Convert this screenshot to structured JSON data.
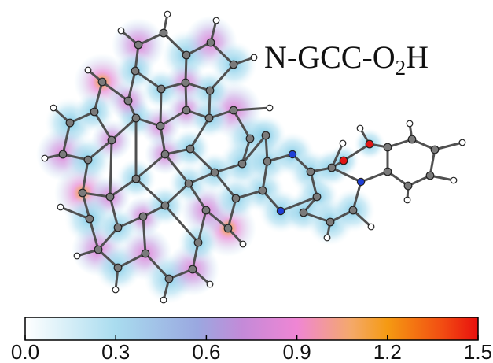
{
  "figure": {
    "label_main": "N-GCC-O",
    "label_sub": "2",
    "label_tail": "H"
  },
  "colorbar": {
    "ticks": [
      "0.0",
      "0.3",
      "0.6",
      "0.9",
      "1.2",
      "1.5"
    ],
    "tick_values": [
      0.0,
      0.3,
      0.6,
      0.9,
      1.2,
      1.5
    ],
    "range": [
      0.0,
      1.5
    ],
    "colors": [
      "#ffffff",
      "#a9dcef",
      "#6cc3e3",
      "#b39ddb",
      "#e88ad6",
      "#f4a96a",
      "#f59a12",
      "#f0210f"
    ]
  },
  "atom_colors": {
    "carbon": "#7a7a7a",
    "hydrogen": "#ffffff",
    "nitrogen": "#1f3fd6",
    "oxygen": "#e01515"
  }
}
